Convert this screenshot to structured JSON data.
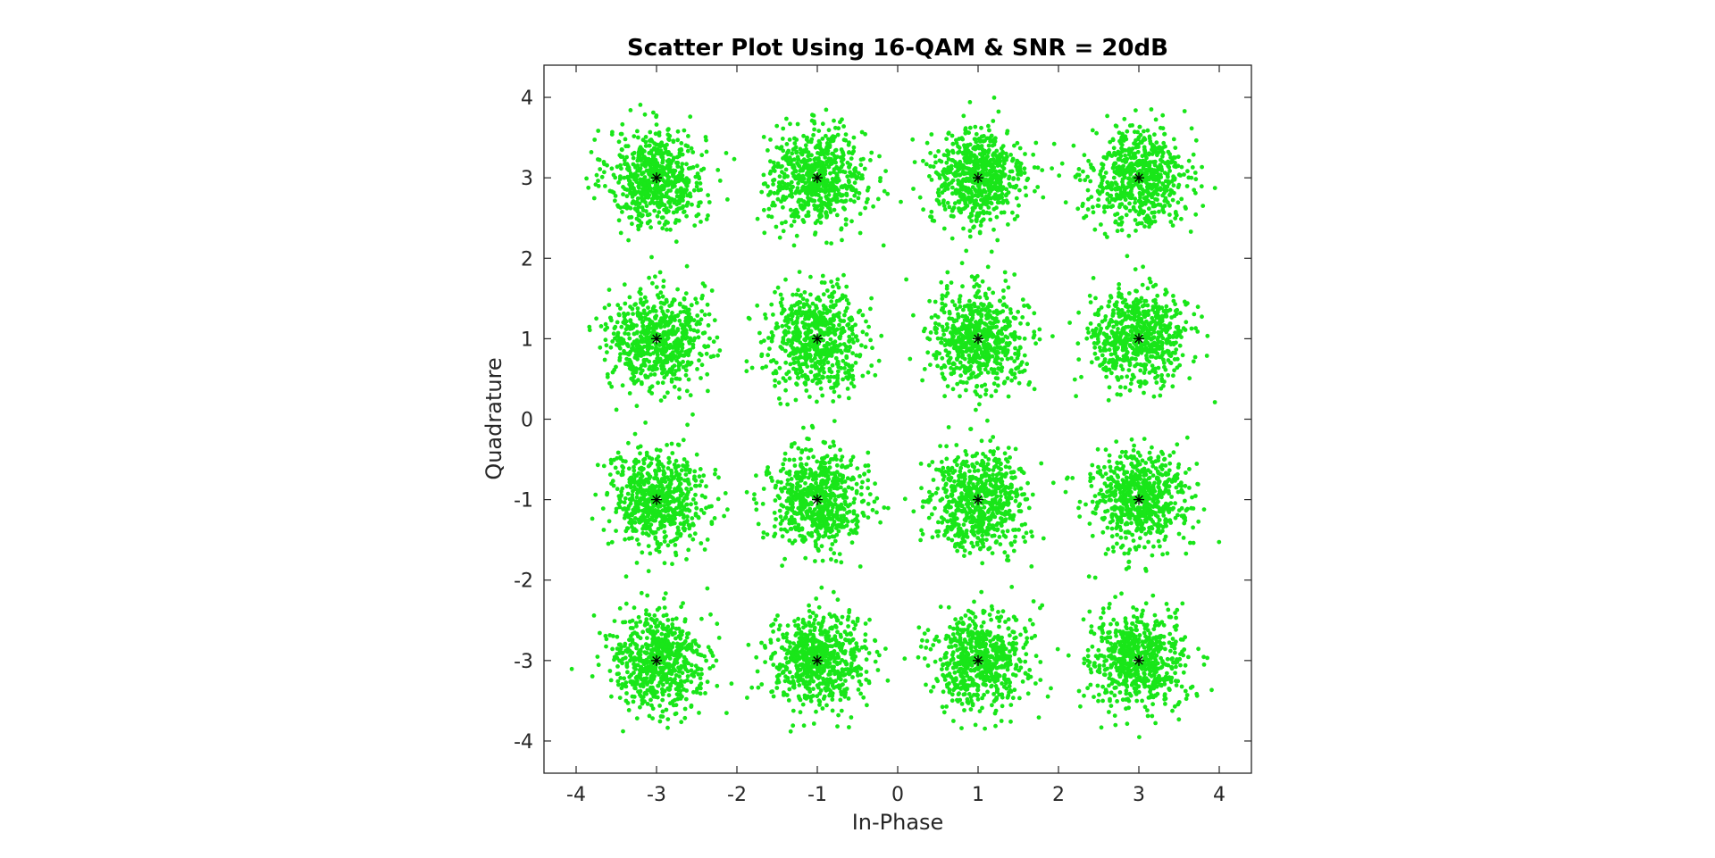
{
  "chart_data": {
    "type": "scatter",
    "title": "Scatter Plot Using 16-QAM & SNR = 20dB",
    "xlabel": "In-Phase",
    "ylabel": "Quadrature",
    "xlim": [
      -4.4,
      4.4
    ],
    "ylim": [
      -4.4,
      4.4
    ],
    "xticks": [
      -4,
      -3,
      -2,
      -1,
      0,
      1,
      2,
      3,
      4
    ],
    "yticks": [
      -4,
      -3,
      -2,
      -1,
      0,
      1,
      2,
      3,
      4
    ],
    "xtick_labels": [
      "-4",
      "-3",
      "-2",
      "-1",
      "0",
      "1",
      "2",
      "3",
      "4"
    ],
    "ytick_labels": [
      "-4",
      "-3",
      "-2",
      "-1",
      "0",
      "1",
      "2",
      "3",
      "4"
    ],
    "grid": false,
    "series": [
      {
        "role": "received-symbols",
        "color": "#19e619",
        "marker": "dot",
        "distribution": "gaussian-noise",
        "noise_std": 0.3,
        "points_per_symbol": 650,
        "centers": [
          [
            -3,
            3
          ],
          [
            -1,
            3
          ],
          [
            1,
            3
          ],
          [
            3,
            3
          ],
          [
            -3,
            1
          ],
          [
            -1,
            1
          ],
          [
            1,
            1
          ],
          [
            3,
            1
          ],
          [
            -3,
            -1
          ],
          [
            -1,
            -1
          ],
          [
            1,
            -1
          ],
          [
            3,
            -1
          ],
          [
            -3,
            -3
          ],
          [
            -1,
            -3
          ],
          [
            1,
            -3
          ],
          [
            3,
            -3
          ]
        ]
      },
      {
        "role": "reference-constellation",
        "color": "#000000",
        "marker": "asterisk",
        "points": [
          [
            -3,
            3
          ],
          [
            -1,
            3
          ],
          [
            1,
            3
          ],
          [
            3,
            3
          ],
          [
            -3,
            1
          ],
          [
            -1,
            1
          ],
          [
            1,
            1
          ],
          [
            3,
            1
          ],
          [
            -3,
            -1
          ],
          [
            -1,
            -1
          ],
          [
            1,
            -1
          ],
          [
            3,
            -1
          ],
          [
            -3,
            -3
          ],
          [
            -1,
            -3
          ],
          [
            1,
            -3
          ],
          [
            3,
            -3
          ]
        ]
      }
    ]
  }
}
